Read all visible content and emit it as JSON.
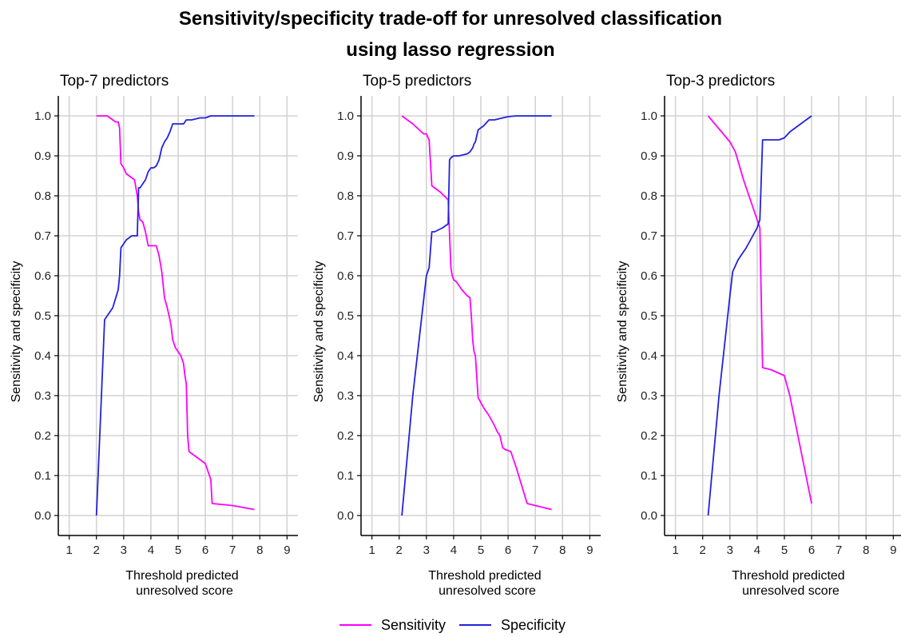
{
  "title_line1": "Sensitivity/specificity trade-off for unresolved classification",
  "title_line2": "using lasso regression",
  "colors": {
    "sensitivity": "#ff00ff",
    "specificity": "#2222dd",
    "grid": "#d3d3d3"
  },
  "legend": {
    "position": "bottom",
    "items": [
      "Sensitivity",
      "Specificity"
    ]
  },
  "chart_data": [
    {
      "type": "line",
      "title": "Top-7 predictors",
      "xlabel_line1": "Threshold predicted",
      "xlabel_line2": "unresolved score",
      "ylabel": "Sensitivity and specificity",
      "xlim": [
        0.6,
        9.4
      ],
      "ylim": [
        -0.05,
        1.05
      ],
      "xticks": [
        1,
        2,
        3,
        4,
        5,
        6,
        7,
        8,
        9
      ],
      "yticks": [
        0.0,
        0.1,
        0.2,
        0.3,
        0.4,
        0.5,
        0.6,
        0.7,
        0.8,
        0.9,
        1.0
      ],
      "grid": true,
      "series": [
        {
          "name": "Sensitivity",
          "x": [
            2.0,
            2.2,
            2.4,
            2.7,
            2.8,
            2.85,
            2.9,
            3.0,
            3.1,
            3.3,
            3.4,
            3.5,
            3.55,
            3.6,
            3.7,
            3.8,
            3.9,
            4.0,
            4.2,
            4.3,
            4.4,
            4.5,
            4.6,
            4.7,
            4.75,
            4.8,
            4.9,
            5.0,
            5.1,
            5.2,
            5.25,
            5.3,
            5.35,
            5.4,
            5.6,
            5.8,
            6.0,
            6.1,
            6.2,
            6.25,
            7.0,
            7.8
          ],
          "y": [
            1.0,
            1.0,
            1.0,
            0.985,
            0.985,
            0.97,
            0.88,
            0.87,
            0.855,
            0.845,
            0.84,
            0.8,
            0.76,
            0.74,
            0.735,
            0.71,
            0.675,
            0.675,
            0.675,
            0.65,
            0.61,
            0.545,
            0.52,
            0.49,
            0.47,
            0.44,
            0.42,
            0.41,
            0.4,
            0.38,
            0.35,
            0.33,
            0.2,
            0.16,
            0.15,
            0.14,
            0.13,
            0.11,
            0.09,
            0.03,
            0.025,
            0.015
          ]
        },
        {
          "name": "Specificity",
          "x": [
            2.0,
            2.3,
            2.6,
            2.8,
            2.85,
            2.9,
            3.0,
            3.1,
            3.3,
            3.5,
            3.55,
            3.6,
            3.7,
            3.8,
            3.9,
            4.0,
            4.1,
            4.2,
            4.3,
            4.4,
            4.5,
            4.6,
            4.7,
            4.8,
            4.9,
            5.0,
            5.2,
            5.3,
            5.5,
            5.8,
            6.0,
            6.2,
            6.3,
            7.0,
            7.8
          ],
          "y": [
            0.0,
            0.49,
            0.52,
            0.565,
            0.6,
            0.67,
            0.68,
            0.69,
            0.7,
            0.7,
            0.82,
            0.82,
            0.83,
            0.84,
            0.86,
            0.87,
            0.87,
            0.875,
            0.89,
            0.92,
            0.935,
            0.945,
            0.96,
            0.98,
            0.98,
            0.98,
            0.98,
            0.99,
            0.99,
            0.995,
            0.995,
            1.0,
            1.0,
            1.0,
            1.0
          ]
        }
      ]
    },
    {
      "type": "line",
      "title": "Top-5 predictors",
      "xlabel_line1": "Threshold predicted",
      "xlabel_line2": "unresolved score",
      "ylabel": "Sensitivity and specificity",
      "xlim": [
        0.6,
        9.4
      ],
      "ylim": [
        -0.05,
        1.05
      ],
      "xticks": [
        1,
        2,
        3,
        4,
        5,
        6,
        7,
        8,
        9
      ],
      "yticks": [
        0.0,
        0.1,
        0.2,
        0.3,
        0.4,
        0.5,
        0.6,
        0.7,
        0.8,
        0.9,
        1.0
      ],
      "grid": true,
      "series": [
        {
          "name": "Sensitivity",
          "x": [
            2.1,
            2.5,
            2.9,
            3.0,
            3.1,
            3.2,
            3.3,
            3.5,
            3.8,
            3.9,
            3.95,
            4.0,
            4.1,
            4.3,
            4.5,
            4.6,
            4.65,
            4.7,
            4.75,
            4.8,
            4.9,
            5.1,
            5.3,
            5.5,
            5.6,
            5.7,
            5.8,
            5.9,
            6.1,
            6.3,
            6.5,
            6.7,
            7.6
          ],
          "y": [
            1.0,
            0.98,
            0.955,
            0.955,
            0.94,
            0.825,
            0.82,
            0.81,
            0.79,
            0.62,
            0.6,
            0.59,
            0.585,
            0.565,
            0.55,
            0.545,
            0.5,
            0.44,
            0.41,
            0.4,
            0.295,
            0.27,
            0.25,
            0.225,
            0.21,
            0.2,
            0.17,
            0.165,
            0.16,
            0.12,
            0.075,
            0.03,
            0.015
          ]
        },
        {
          "name": "Specificity",
          "x": [
            2.1,
            2.5,
            2.9,
            3.0,
            3.1,
            3.2,
            3.3,
            3.6,
            3.8,
            3.85,
            3.9,
            4.0,
            4.2,
            4.5,
            4.6,
            4.7,
            4.75,
            4.8,
            4.9,
            5.1,
            5.3,
            5.5,
            5.8,
            6.0,
            6.3,
            6.7,
            7.6
          ],
          "y": [
            0.0,
            0.3,
            0.54,
            0.6,
            0.62,
            0.71,
            0.71,
            0.72,
            0.73,
            0.89,
            0.895,
            0.9,
            0.9,
            0.905,
            0.91,
            0.92,
            0.93,
            0.935,
            0.965,
            0.975,
            0.99,
            0.99,
            0.995,
            0.998,
            1.0,
            1.0,
            1.0
          ]
        }
      ]
    },
    {
      "type": "line",
      "title": "Top-3 predictors",
      "xlabel_line1": "Threshold predicted",
      "xlabel_line2": "unresolved score",
      "ylabel": "Sensitivity and specificity",
      "xlim": [
        0.6,
        9.4
      ],
      "ylim": [
        -0.05,
        1.05
      ],
      "xticks": [
        1,
        2,
        3,
        4,
        5,
        6,
        7,
        8,
        9
      ],
      "yticks": [
        0.0,
        0.1,
        0.2,
        0.3,
        0.4,
        0.5,
        0.6,
        0.7,
        0.8,
        0.9,
        1.0
      ],
      "grid": true,
      "series": [
        {
          "name": "Sensitivity",
          "x": [
            2.2,
            3.0,
            3.2,
            3.5,
            3.8,
            4.0,
            4.1,
            4.2,
            4.5,
            5.0,
            5.2,
            6.0
          ],
          "y": [
            1.0,
            0.935,
            0.91,
            0.84,
            0.78,
            0.74,
            0.72,
            0.37,
            0.365,
            0.35,
            0.3,
            0.03
          ]
        },
        {
          "name": "Specificity",
          "x": [
            2.2,
            2.6,
            3.0,
            3.1,
            3.3,
            3.6,
            4.0,
            4.1,
            4.2,
            4.5,
            4.8,
            5.0,
            5.2,
            6.0
          ],
          "y": [
            0.0,
            0.3,
            0.55,
            0.61,
            0.64,
            0.67,
            0.72,
            0.74,
            0.94,
            0.94,
            0.94,
            0.945,
            0.96,
            1.0
          ]
        }
      ]
    }
  ]
}
